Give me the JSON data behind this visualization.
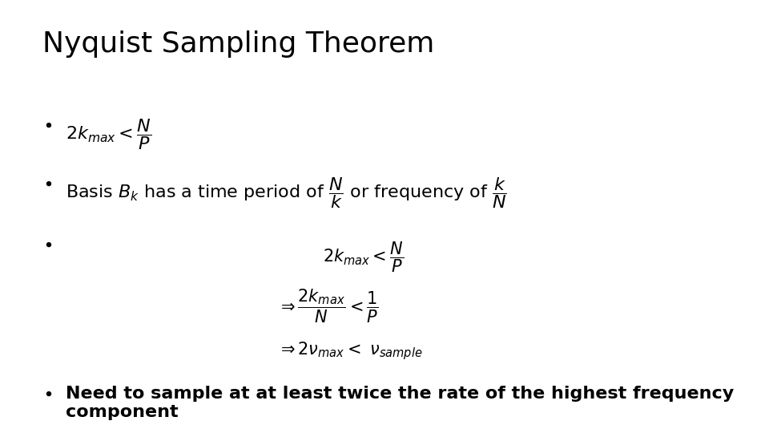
{
  "title": "Nyquist Sampling Theorem",
  "background_color": "#ffffff",
  "title_fontsize": 26,
  "text_color": "#000000",
  "bullet_fontsize": 16,
  "math_block_fontsize": 15
}
